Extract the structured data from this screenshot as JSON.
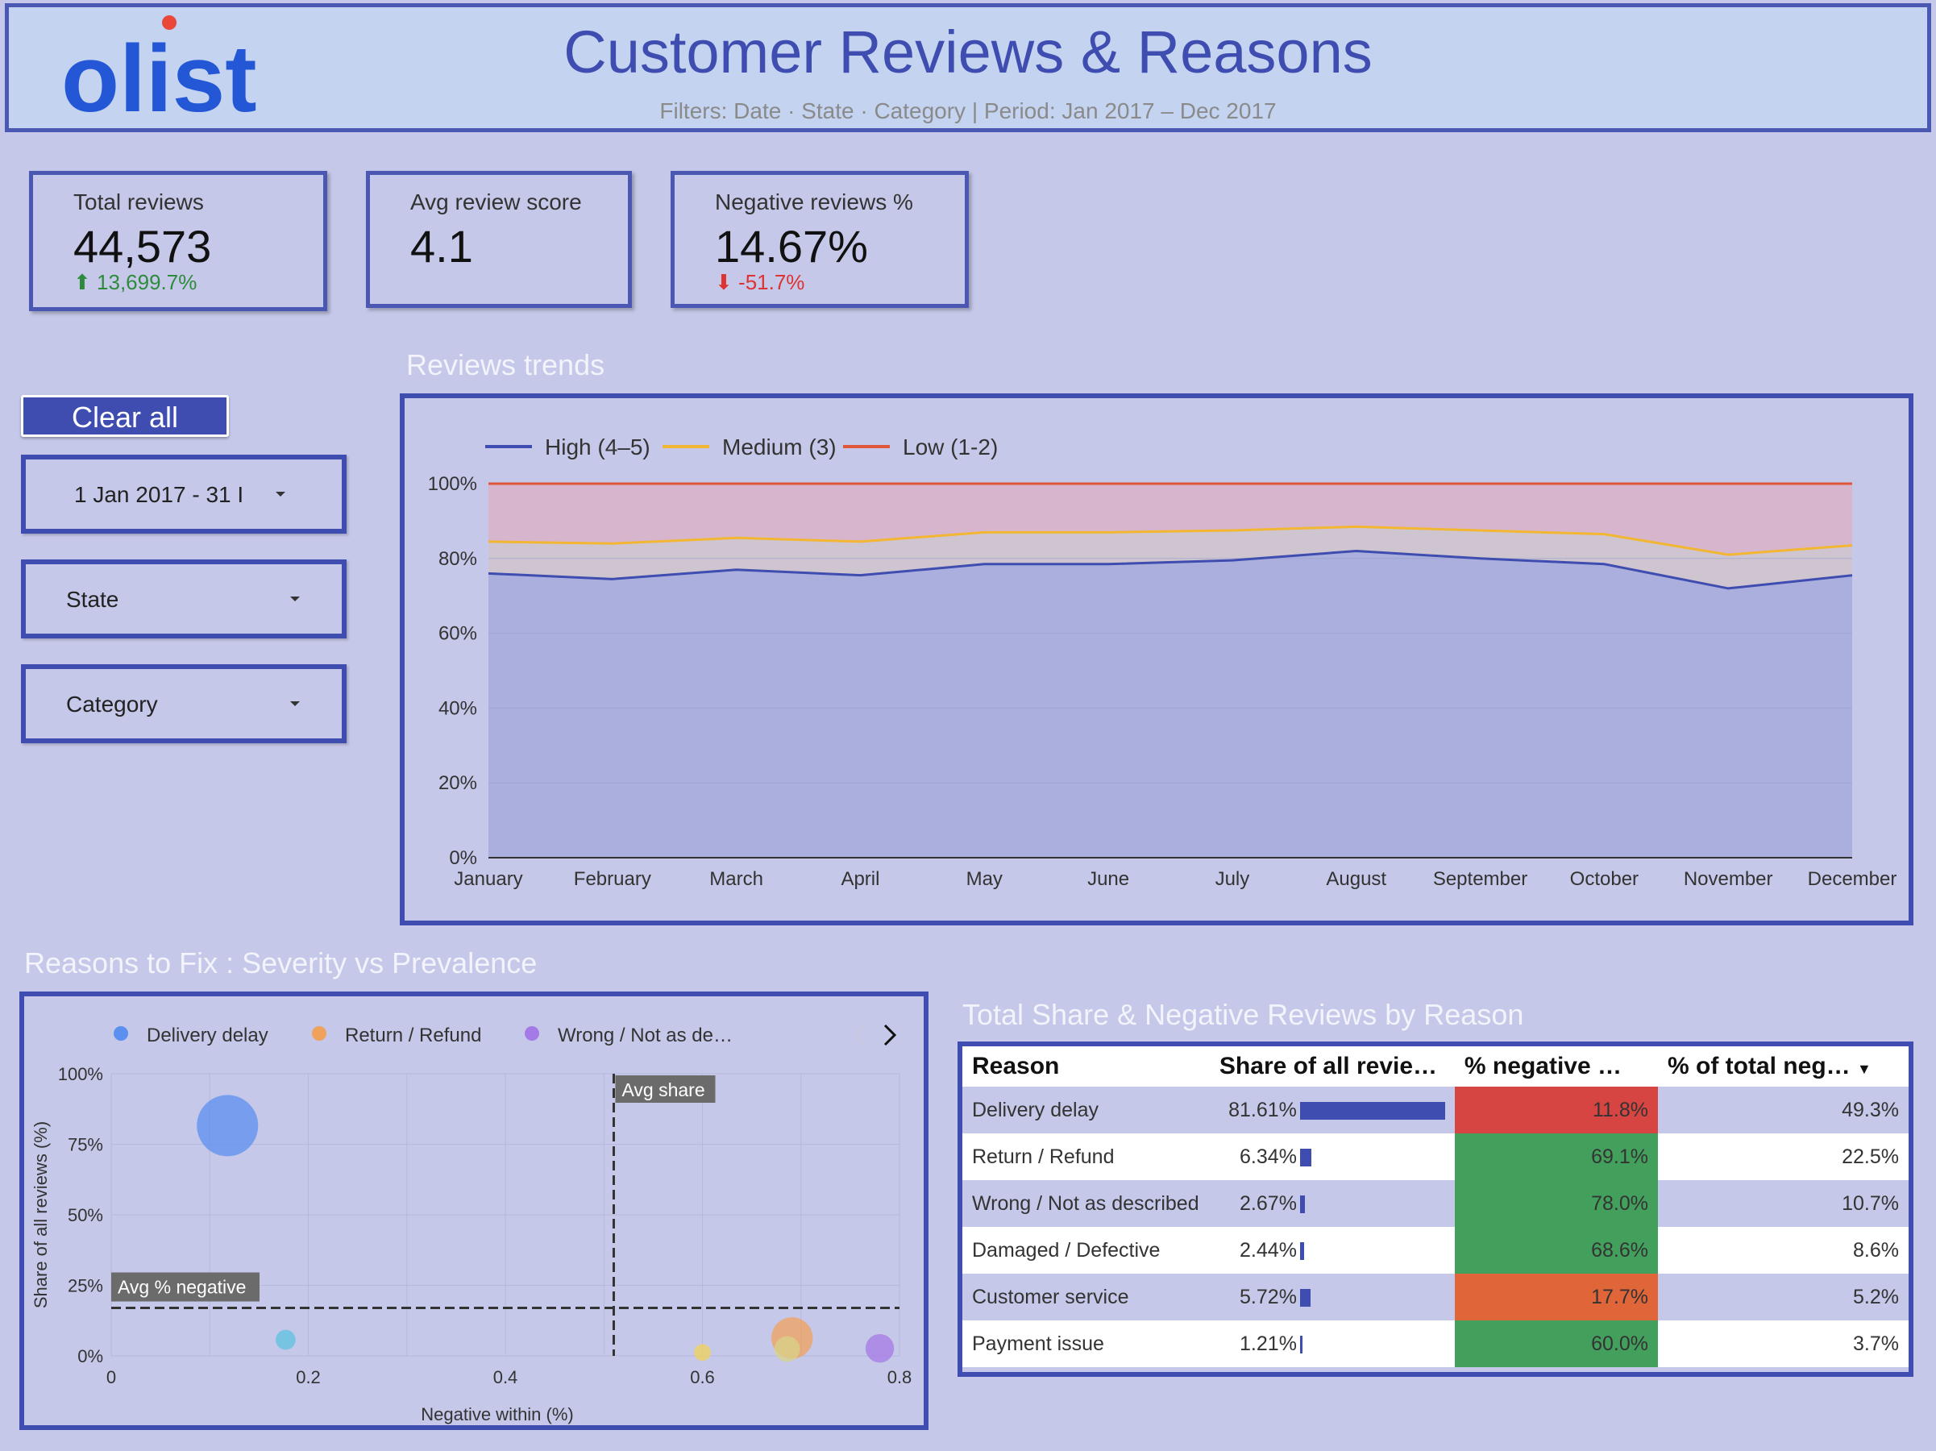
{
  "header": {
    "logo_text": "olist",
    "title": "Customer Reviews & Reasons",
    "subtitle_filters": "Filters: Date · State · Category | Period:",
    "subtitle_period": "Jan 2017 – Dec 2017"
  },
  "kpis": [
    {
      "label": "Total reviews",
      "value": "44,573",
      "delta": "13,699.7%",
      "direction": "up"
    },
    {
      "label": "Avg review score",
      "value": "4.1"
    },
    {
      "label": "Negative reviews %",
      "value": "14.67%",
      "delta": "-51.7%",
      "direction": "down"
    }
  ],
  "filters": {
    "clear_label": "Clear all",
    "date_value": "1 Jan 2017 - 31 I",
    "state_label": "State",
    "category_label": "Category"
  },
  "trend": {
    "section_title": "Reviews trends",
    "legend": [
      "High (4–5)",
      "Medium (3)",
      "Low (1-2)"
    ]
  },
  "bubble": {
    "section_title": "Reasons to Fix : Severity vs Prevalence",
    "legend": [
      "Delivery delay",
      "Return / Refund",
      "Wrong / Not as de…"
    ],
    "avg_share_label": "Avg share",
    "avg_neg_label": "Avg % negative"
  },
  "table": {
    "section_title": "Total Share & Negative Reviews by Reason",
    "headers": [
      "Reason",
      "Share of all revie…",
      "% negative …",
      "% of total neg…"
    ],
    "rows": [
      {
        "reason": "Delivery delay",
        "share": "81.61%",
        "share_val": 81.61,
        "neg": "11.8%",
        "neg_color": "#d64541",
        "total": "49.3%"
      },
      {
        "reason": "Return / Refund",
        "share": "6.34%",
        "share_val": 6.34,
        "neg": "69.1%",
        "neg_color": "#43a05c",
        "total": "22.5%"
      },
      {
        "reason": "Wrong / Not as described",
        "share": "2.67%",
        "share_val": 2.67,
        "neg": "78.0%",
        "neg_color": "#43a05c",
        "total": "10.7%"
      },
      {
        "reason": "Damaged / Defective",
        "share": "2.44%",
        "share_val": 2.44,
        "neg": "68.6%",
        "neg_color": "#43a05c",
        "total": "8.6%"
      },
      {
        "reason": "Customer service",
        "share": "5.72%",
        "share_val": 5.72,
        "neg": "17.7%",
        "neg_color": "#e0663a",
        "total": "5.2%"
      },
      {
        "reason": "Payment issue",
        "share": "1.21%",
        "share_val": 1.21,
        "neg": "60.0%",
        "neg_color": "#43a05c",
        "total": "3.7%"
      }
    ]
  },
  "chart_data": [
    {
      "type": "area",
      "title": "Reviews trends",
      "categories": [
        "January",
        "February",
        "March",
        "April",
        "May",
        "June",
        "July",
        "August",
        "September",
        "October",
        "November",
        "December"
      ],
      "series": [
        {
          "name": "High (4–5)",
          "color": "#3f4db0",
          "values": [
            76,
            74.5,
            77,
            75.5,
            78.5,
            78.5,
            79.5,
            82,
            80,
            78.5,
            72,
            75.5
          ]
        },
        {
          "name": "Medium (3)",
          "color": "#f2b632",
          "values": [
            84.5,
            84,
            85.5,
            84.5,
            87,
            87,
            87.5,
            88.5,
            87.5,
            86.5,
            81,
            83.5
          ]
        },
        {
          "name": "Low (1-2)",
          "color": "#e0563a",
          "values": [
            100,
            100,
            100,
            100,
            100,
            100,
            100,
            100,
            100,
            100,
            100,
            100
          ]
        }
      ],
      "ylim": [
        0,
        100
      ],
      "yticks": [
        "0%",
        "20%",
        "40%",
        "60%",
        "80%",
        "100%"
      ],
      "grid": true,
      "legend": "top-left"
    },
    {
      "type": "scatter",
      "title": "Reasons to Fix : Severity vs Prevalence",
      "xlabel": "Negative within (%)",
      "ylabel": "Share of all reviews (%)",
      "xlim": [
        0,
        0.8
      ],
      "ylim": [
        0,
        100
      ],
      "xticks": [
        "0",
        "0.2",
        "0.4",
        "0.6",
        "0.8"
      ],
      "yticks": [
        "0%",
        "25%",
        "50%",
        "75%",
        "100%"
      ],
      "avg_share_x": 0.51,
      "avg_negative_y": 17,
      "points": [
        {
          "name": "Delivery delay",
          "x": 0.118,
          "y": 81.61,
          "size": 49.3,
          "color": "#5b8ff0"
        },
        {
          "name": "Return / Refund",
          "x": 0.691,
          "y": 6.34,
          "size": 22.5,
          "color": "#f0a15b"
        },
        {
          "name": "Wrong / Not as described",
          "x": 0.78,
          "y": 2.67,
          "size": 10.7,
          "color": "#a47ae6"
        },
        {
          "name": "Damaged / Defective",
          "x": 0.686,
          "y": 2.44,
          "size": 8.6,
          "color": "#d8d38a"
        },
        {
          "name": "Customer service",
          "x": 0.177,
          "y": 5.72,
          "size": 5.2,
          "color": "#5bc2e0"
        },
        {
          "name": "Payment issue",
          "x": 0.6,
          "y": 1.21,
          "size": 3.7,
          "color": "#f0d35b"
        }
      ]
    }
  ]
}
